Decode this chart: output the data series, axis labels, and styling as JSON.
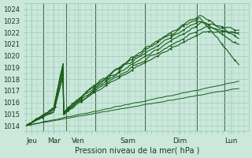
{
  "xlabel": "Pression niveau de la mer( hPa )",
  "bg_color": "#cce8dc",
  "grid_color": "#99ccb8",
  "line_color": "#1a5c1a",
  "xlim": [
    0,
    6.8
  ],
  "ylim": [
    1013.5,
    1024.5
  ],
  "yticks": [
    1014,
    1015,
    1016,
    1017,
    1018,
    1019,
    1020,
    1021,
    1022,
    1023,
    1024
  ],
  "day_positions": [
    0.18,
    0.85,
    1.6,
    3.1,
    4.7,
    6.25
  ],
  "day_labels": [
    "Jeu",
    "Mar",
    "Ven",
    "Sam",
    "Dim",
    "Lun"
  ],
  "day_vlines": [
    0.52,
    1.22,
    2.12,
    3.62,
    5.22,
    6.05
  ],
  "seed": 12
}
